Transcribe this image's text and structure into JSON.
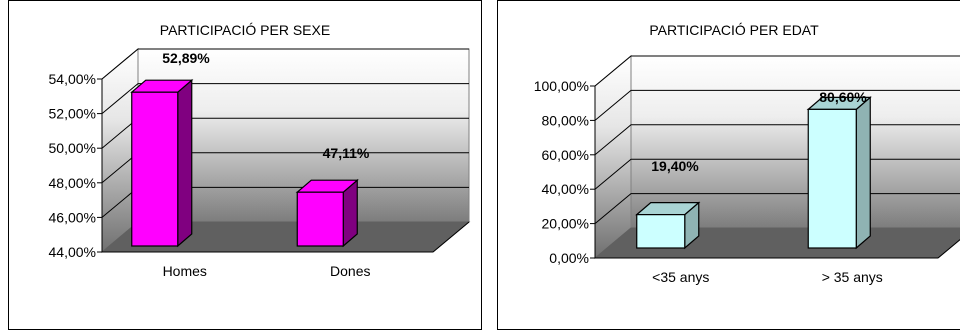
{
  "chart_data": [
    {
      "type": "bar",
      "title": "PARTICIPACIÓ PER SEXE",
      "categories": [
        "Homes",
        "Dones"
      ],
      "values": [
        52.89,
        47.11
      ],
      "data_labels": [
        "52,89%",
        "47,11%"
      ],
      "ylim": [
        44,
        54
      ],
      "yticks": [
        "44,00%",
        "46,00%",
        "48,00%",
        "50,00%",
        "52,00%",
        "54,00%"
      ],
      "xlabel": "",
      "ylabel": "",
      "grid": true,
      "legend": "none",
      "colors": {
        "bar_front": "#ff00ff",
        "bar_side": "#800080",
        "bar_top": "#ff00ff"
      }
    },
    {
      "type": "bar",
      "title": "PARTICIPACIÓ PER EDAT",
      "categories": [
        "<35 anys",
        "> 35 anys"
      ],
      "values": [
        19.4,
        80.6
      ],
      "data_labels": [
        "19,40%",
        "80,60%"
      ],
      "ylim": [
        0,
        100
      ],
      "yticks": [
        "0,00%",
        "20,00%",
        "40,00%",
        "60,00%",
        "80,00%",
        "100,00%"
      ],
      "xlabel": "",
      "ylabel": "",
      "grid": true,
      "legend": "none",
      "colors": {
        "bar_front": "#ccffff",
        "bar_side": "#8fb3b3",
        "bar_top": "#a9d4d4"
      }
    }
  ]
}
